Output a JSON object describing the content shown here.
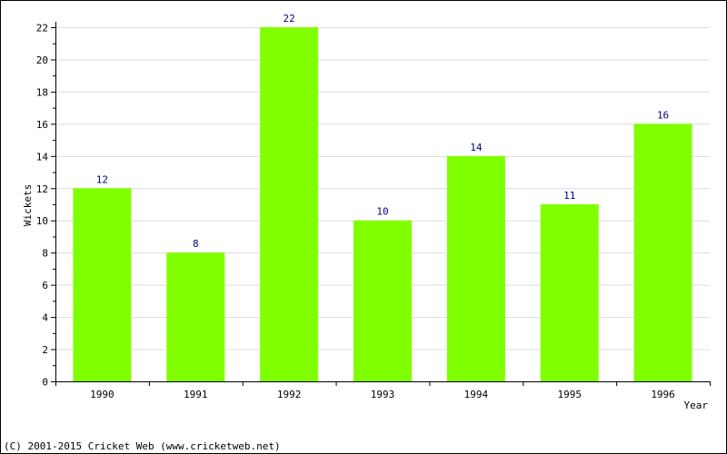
{
  "chart_data": {
    "type": "bar",
    "title": "",
    "xlabel": "Year",
    "ylabel": "Wickets",
    "categories": [
      "1990",
      "1991",
      "1992",
      "1993",
      "1994",
      "1995",
      "1996"
    ],
    "values": [
      12,
      8,
      22,
      10,
      14,
      11,
      16
    ],
    "data_labels": [
      "12",
      "8",
      "22",
      "10",
      "14",
      "11",
      "16"
    ],
    "ylim": [
      0,
      22
    ],
    "yticks": [
      0,
      2,
      4,
      6,
      8,
      10,
      12,
      14,
      16,
      18,
      20,
      22
    ],
    "grid": true,
    "bar_color": "#80ff00",
    "value_label_color": "#000080"
  },
  "footer": {
    "text": "(C) 2001-2015 Cricket Web (www.cricketweb.net)"
  }
}
